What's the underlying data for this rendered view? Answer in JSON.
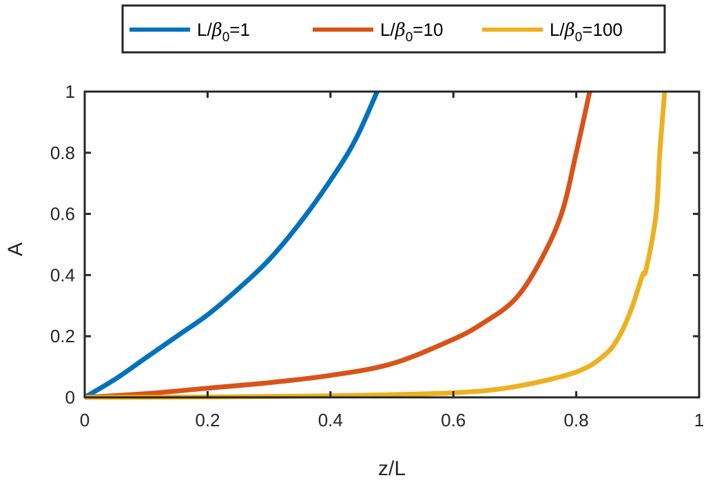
{
  "chart_data": {
    "type": "line",
    "title": "",
    "xlabel": "z/L",
    "ylabel": "A",
    "xlim": [
      0,
      1
    ],
    "ylim": [
      0,
      1
    ],
    "xticks": [
      0,
      0.2,
      0.4,
      0.6,
      0.8,
      1
    ],
    "yticks": [
      0,
      0.2,
      0.4,
      0.6,
      0.8,
      1
    ],
    "xtick_labels": [
      "0",
      "0.2",
      "0.4",
      "0.6",
      "0.8",
      "1"
    ],
    "ytick_labels": [
      "0",
      "0.2",
      "0.4",
      "0.6",
      "0.8",
      "1"
    ],
    "grid": false,
    "box": true,
    "legend_position": "top-outside-horizontal",
    "series": [
      {
        "name": "L/β0=1",
        "label_prefix": "L/",
        "label_symbol": "β",
        "label_sub": "0",
        "label_suffix": "=1",
        "color": "#0072BD",
        "x": [
          0,
          0.05,
          0.1,
          0.15,
          0.2,
          0.25,
          0.3,
          0.35,
          0.4,
          0.44,
          0.476
        ],
        "y": [
          0,
          0.06,
          0.13,
          0.2,
          0.27,
          0.355,
          0.45,
          0.57,
          0.71,
          0.84,
          1.0
        ]
      },
      {
        "name": "L/β0=10",
        "label_prefix": "L/",
        "label_symbol": "β",
        "label_sub": "0",
        "label_suffix": "=10",
        "color": "#D95319",
        "x": [
          0,
          0.1,
          0.2,
          0.3,
          0.4,
          0.5,
          0.6,
          0.65,
          0.7,
          0.74,
          0.776,
          0.8,
          0.822
        ],
        "y": [
          0,
          0.012,
          0.03,
          0.048,
          0.072,
          0.11,
          0.19,
          0.245,
          0.32,
          0.44,
          0.6,
          0.8,
          1.0
        ]
      },
      {
        "name": "L/β0=100",
        "label_prefix": "L/",
        "label_symbol": "β",
        "label_sub": "0",
        "label_suffix": "=100",
        "color": "#EDB120",
        "x": [
          0,
          0.2,
          0.4,
          0.6,
          0.7,
          0.8,
          0.847,
          0.87,
          0.89,
          0.908,
          0.914,
          0.93,
          0.936,
          0.944
        ],
        "y": [
          0,
          0.001,
          0.005,
          0.015,
          0.035,
          0.083,
          0.14,
          0.2,
          0.29,
          0.4,
          0.42,
          0.6,
          0.8,
          1.0
        ]
      }
    ]
  }
}
